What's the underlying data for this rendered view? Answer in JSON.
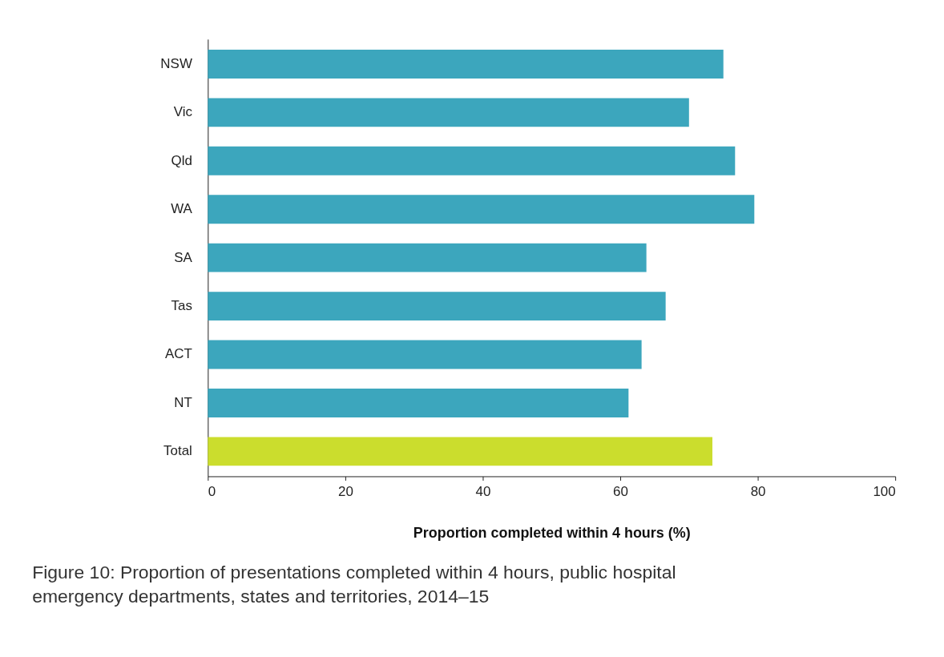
{
  "chart_data": {
    "type": "bar",
    "orientation": "horizontal",
    "title": "Figure 10: Proportion of presentations completed within 4 hours, public hospital emergency departments, states and territories, 2014–15",
    "xlabel": "Proportion completed within 4 hours (%)",
    "categories": [
      "NSW",
      "Vic",
      "Qld",
      "WA",
      "SA",
      "Tas",
      "ACT",
      "NT",
      "Total"
    ],
    "values": [
      75.0,
      70.0,
      76.7,
      79.5,
      63.8,
      66.6,
      63.1,
      61.2,
      73.4
    ],
    "colors": [
      "#3ca6bd",
      "#3ca6bd",
      "#3ca6bd",
      "#3ca6bd",
      "#3ca6bd",
      "#3ca6bd",
      "#3ca6bd",
      "#3ca6bd",
      "#cbdd2d"
    ],
    "xlim": [
      0,
      100
    ],
    "xticks": [
      0,
      20,
      40,
      60,
      80,
      100
    ],
    "grid": false
  }
}
